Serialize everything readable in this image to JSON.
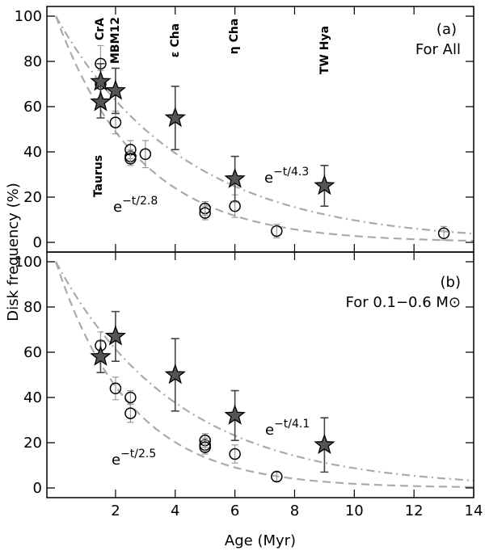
{
  "chart_data": [
    {
      "type": "scatter",
      "panel_label": "(a)",
      "subtitle": "For All",
      "ylabel": "Disk frequency (%)",
      "xlim": [
        -0.3,
        14
      ],
      "xticks": [
        2,
        4,
        6,
        8,
        10,
        12,
        14
      ],
      "ylim": [
        -4.3,
        104.3
      ],
      "yticks": [
        0,
        20,
        40,
        60,
        80,
        100
      ],
      "group_labels": [
        "CrA",
        "MBM12",
        "ε Cha",
        "η Cha",
        "TW Hya",
        "Taurus"
      ],
      "stars": {
        "color": "#555555",
        "x": [
          1.5,
          1.5,
          2,
          4,
          6,
          9
        ],
        "y": [
          71,
          62,
          67,
          55,
          28,
          25
        ],
        "err": [
          8,
          7,
          10,
          14,
          10,
          9
        ]
      },
      "circles": {
        "color": "#000000",
        "x": [
          1.5,
          1.5,
          2,
          2.5,
          2.5,
          2.5,
          3,
          5,
          5,
          6,
          7.4,
          13
        ],
        "y": [
          79,
          70,
          53,
          41,
          38,
          37,
          39,
          15,
          13,
          16,
          5,
          4
        ],
        "err": [
          8,
          6,
          5,
          4,
          3,
          3,
          6,
          3,
          3,
          5,
          3,
          3
        ]
      },
      "fits": [
        {
          "base": "e",
          "exp": "−t/2.8",
          "tau": 2.8,
          "amplitude": 100,
          "style": "dashed"
        },
        {
          "base": "e",
          "exp": "−t/4.3",
          "tau": 4.3,
          "amplitude": 100,
          "style": "dashdot"
        }
      ]
    },
    {
      "type": "scatter",
      "panel_label": "(b)",
      "subtitle": "For 0.1−0.6 M⊙",
      "xlabel": "Age (Myr)",
      "xlim": [
        -0.3,
        14
      ],
      "xticks": [
        2,
        4,
        6,
        8,
        10,
        12,
        14
      ],
      "ylim": [
        -4.3,
        104.3
      ],
      "yticks": [
        0,
        20,
        40,
        60,
        80,
        100
      ],
      "stars": {
        "color": "#555555",
        "x": [
          1.5,
          2,
          4,
          6,
          9
        ],
        "y": [
          58,
          67,
          50,
          32,
          19
        ],
        "err": [
          7,
          11,
          16,
          11,
          12
        ]
      },
      "circles": {
        "color": "#000000",
        "x": [
          1.5,
          2,
          2.5,
          2.5,
          5,
          5,
          5,
          6,
          7.4
        ],
        "y": [
          63,
          44,
          40,
          33,
          21,
          19,
          18,
          15,
          5
        ],
        "err": [
          6,
          5,
          3,
          4,
          3,
          3,
          3,
          4,
          2
        ]
      },
      "fits": [
        {
          "base": "e",
          "exp": "−t/2.5",
          "tau": 2.5,
          "amplitude": 100,
          "style": "dashed"
        },
        {
          "base": "e",
          "exp": "−t/4.1",
          "tau": 4.1,
          "amplitude": 100,
          "style": "dashdot"
        }
      ]
    }
  ]
}
